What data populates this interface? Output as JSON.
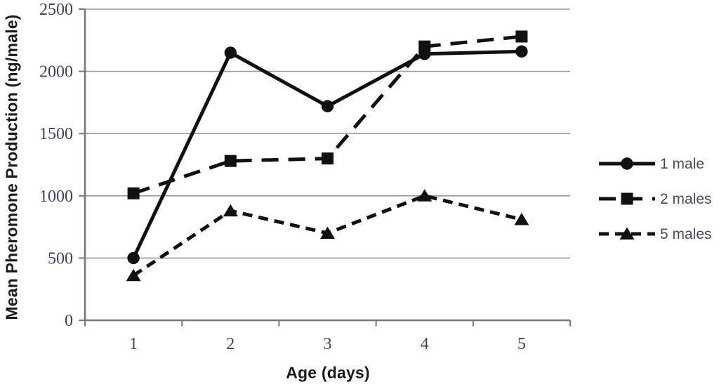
{
  "chart_data": {
    "type": "line",
    "title": "",
    "xlabel": "Age (days)",
    "ylabel": "Mean Pheromone Production (ng/male)",
    "x": [
      1,
      2,
      3,
      4,
      5
    ],
    "x_tick_labels": [
      "1",
      "2",
      "3",
      "4",
      "5"
    ],
    "y_ticks": [
      0,
      500,
      1000,
      1500,
      2000,
      2500
    ],
    "y_tick_labels": [
      "0",
      "500",
      "1000",
      "1500",
      "2000",
      "2500"
    ],
    "ylim": [
      0,
      2500
    ],
    "grid": "horizontal",
    "legend_position": "right",
    "series": [
      {
        "name": "1 male",
        "marker": "circle",
        "line_style": "solid",
        "values": [
          500,
          2150,
          1720,
          2140,
          2160
        ]
      },
      {
        "name": "2 males",
        "marker": "square",
        "line_style": "long-dash",
        "values": [
          1020,
          1280,
          1300,
          2200,
          2280
        ]
      },
      {
        "name": "5 males",
        "marker": "triangle",
        "line_style": "dash",
        "values": [
          360,
          880,
          700,
          1000,
          810
        ]
      }
    ],
    "colors": {
      "series": "#111111",
      "gridline": "#9a9a9a",
      "axis": "#787878",
      "tick_label": "#3e425a",
      "title": "#1b1b1b",
      "legend_text": "#474a5c",
      "background": "#ffffff"
    }
  }
}
